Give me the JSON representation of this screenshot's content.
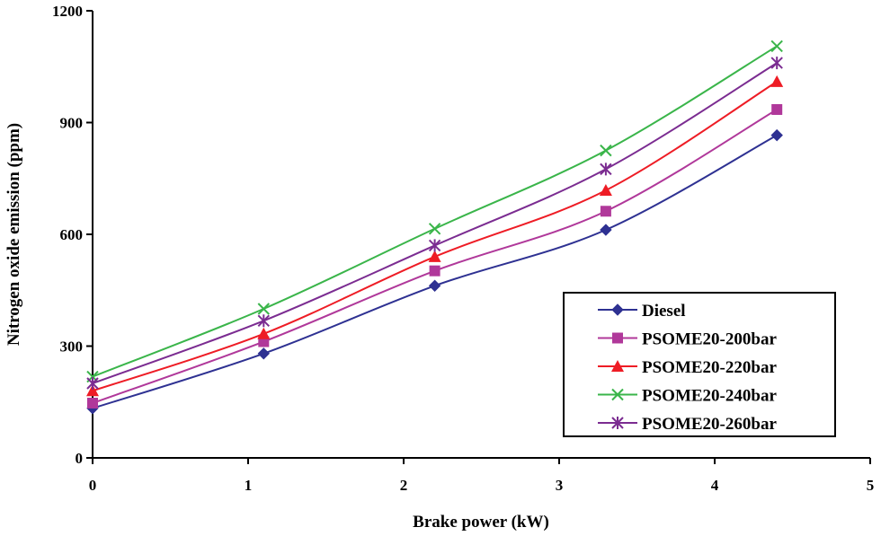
{
  "chart_data": {
    "type": "line",
    "title": "",
    "xlabel": "Brake power (kW)",
    "ylabel": "Nitrogen oxide emission  (ppm)",
    "xlim": [
      0,
      5
    ],
    "ylim": [
      0,
      1200
    ],
    "xticks": [
      "0",
      "1",
      "2",
      "3",
      "4",
      "5"
    ],
    "yticks": [
      "0",
      "300",
      "600",
      "900",
      "1200"
    ],
    "x": [
      0,
      1.1,
      2.2,
      3.3,
      4.4
    ],
    "grid": false,
    "legend_position": "bottom-right",
    "series": [
      {
        "name": "Diesel",
        "color": "#2e3192",
        "marker": "diamond",
        "values": [
          133,
          280,
          462,
          612,
          866
        ]
      },
      {
        "name": "PSOME20-200bar",
        "color": "#b0389a",
        "marker": "square",
        "values": [
          147,
          312,
          502,
          662,
          935
        ]
      },
      {
        "name": "PSOME20-220bar",
        "color": "#ee1c25",
        "marker": "triangle",
        "values": [
          180,
          333,
          540,
          718,
          1010
        ]
      },
      {
        "name": "PSOME20-240bar",
        "color": "#3ab54a",
        "marker": "x",
        "values": [
          218,
          400,
          615,
          825,
          1105
        ]
      },
      {
        "name": "PSOME20-260bar",
        "color": "#7b2c91",
        "marker": "star",
        "values": [
          200,
          368,
          570,
          775,
          1060
        ]
      }
    ]
  }
}
